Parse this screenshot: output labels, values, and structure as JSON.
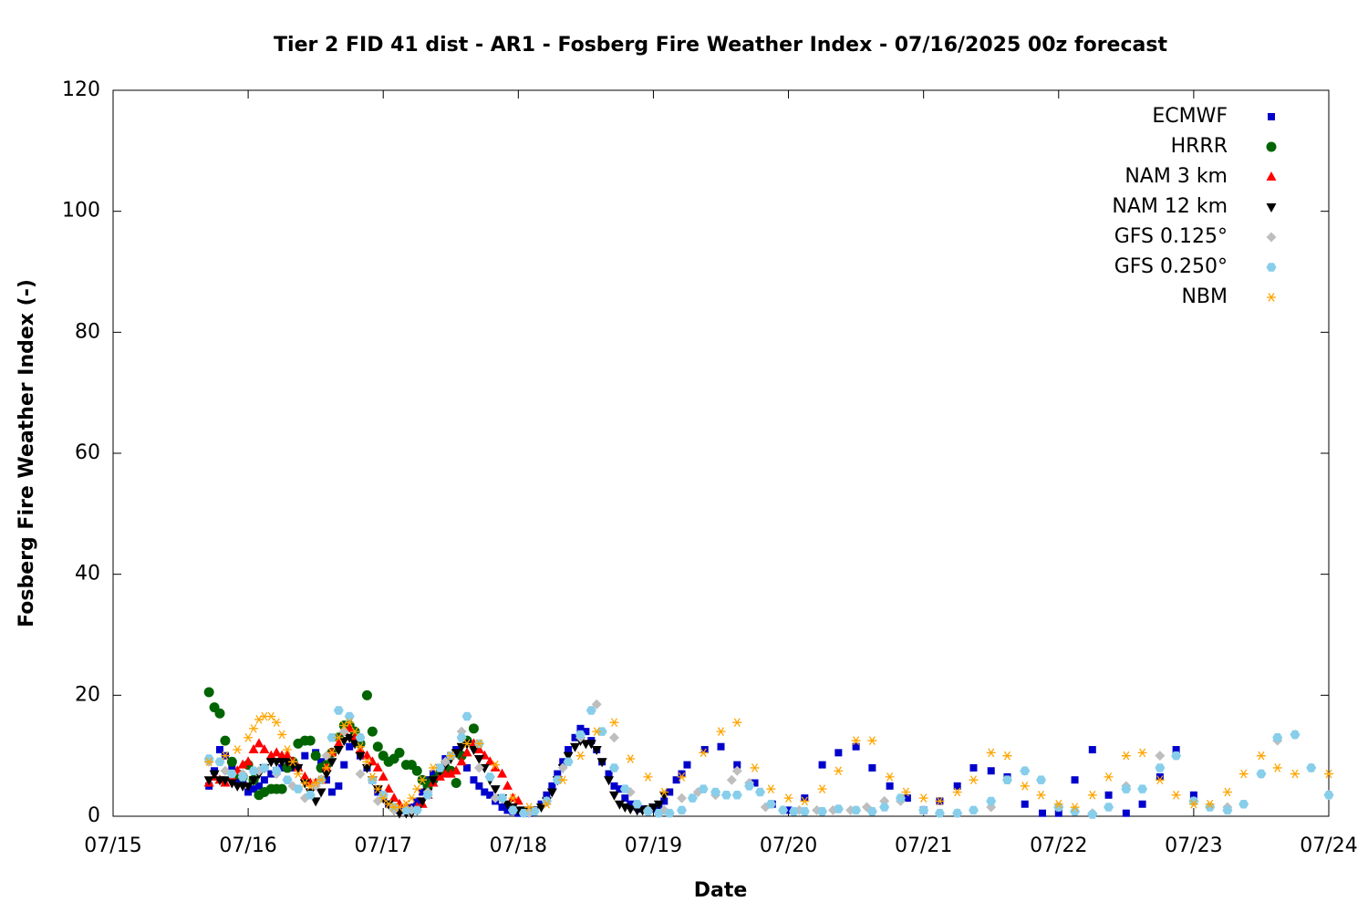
{
  "chart_data": {
    "type": "scatter",
    "title": "Tier 2 FID 41 dist - AR1 - Fosberg Fire Weather Index - 07/16/2025 00z forecast",
    "x_label": "Date",
    "y_label": "Fosberg Fire Weather Index (-)",
    "xlim": [
      0,
      9
    ],
    "ylim": [
      0,
      120
    ],
    "xticks": [
      {
        "value": 0,
        "label": "07/15"
      },
      {
        "value": 1,
        "label": "07/16"
      },
      {
        "value": 2,
        "label": "07/17"
      },
      {
        "value": 3,
        "label": "07/18"
      },
      {
        "value": 4,
        "label": "07/19"
      },
      {
        "value": 5,
        "label": "07/20"
      },
      {
        "value": 6,
        "label": "07/21"
      },
      {
        "value": 7,
        "label": "07/22"
      },
      {
        "value": 8,
        "label": "07/23"
      },
      {
        "value": 9,
        "label": "07/24"
      }
    ],
    "yticks": [
      0,
      20,
      40,
      60,
      80,
      100,
      120
    ],
    "legend": "top-right",
    "series": [
      {
        "name": "ECMWF",
        "color": "#0000cc",
        "marker": "square",
        "x": [
          0.71,
          0.75,
          0.79,
          0.83,
          0.88,
          0.92,
          0.96,
          1.0,
          1.04,
          1.08,
          1.12,
          1.17,
          1.21,
          1.25,
          1.29,
          1.33,
          1.37,
          1.42,
          1.46,
          1.5,
          1.54,
          1.58,
          1.62,
          1.67,
          1.71,
          1.75,
          1.79,
          1.83,
          1.88,
          1.92,
          1.96,
          2.0,
          2.04,
          2.08,
          2.12,
          2.17,
          2.21,
          2.25,
          2.29,
          2.33,
          2.37,
          2.42,
          2.46,
          2.5,
          2.54,
          2.58,
          2.62,
          2.67,
          2.71,
          2.75,
          2.79,
          2.83,
          2.88,
          2.92,
          2.96,
          3.0,
          3.04,
          3.08,
          3.12,
          3.17,
          3.21,
          3.25,
          3.29,
          3.33,
          3.37,
          3.42,
          3.46,
          3.5,
          3.54,
          3.58,
          3.62,
          3.67,
          3.71,
          3.75,
          3.79,
          3.83,
          3.88,
          3.92,
          3.96,
          4.0,
          4.04,
          4.08,
          4.12,
          4.17,
          4.21,
          4.25,
          4.38,
          4.5,
          4.62,
          4.75,
          4.88,
          5.0,
          5.12,
          5.25,
          5.37,
          5.5,
          5.62,
          5.75,
          5.88,
          6.0,
          6.12,
          6.25,
          6.37,
          6.5,
          6.62,
          6.75,
          6.88,
          7.0,
          7.12,
          7.25,
          7.37,
          7.5,
          7.62,
          7.75,
          7.87,
          8.0
        ],
        "values": [
          5,
          7.5,
          11,
          10,
          8,
          6,
          6,
          4,
          4.5,
          5,
          6,
          7,
          7.5,
          8,
          8,
          8,
          8,
          10,
          12.5,
          10.5,
          9,
          6,
          4,
          5,
          8.5,
          11.5,
          12,
          10,
          8,
          6,
          4,
          3,
          2,
          1.5,
          1,
          1,
          1.5,
          2.5,
          4,
          6,
          7,
          8,
          9.5,
          10,
          11,
          10,
          8,
          6,
          5,
          4,
          3.5,
          2.5,
          1.5,
          1,
          0.8,
          0.5,
          0.5,
          0.5,
          1,
          2,
          3.5,
          5,
          7,
          9,
          11,
          13,
          14.5,
          14,
          12.5,
          11,
          9,
          7,
          5,
          4.5,
          3,
          2,
          1.5,
          1.2,
          1,
          1.2,
          1.5,
          2.5,
          4,
          6,
          7,
          8.5,
          11,
          11.5,
          8.5,
          5.5,
          2,
          1,
          3,
          8.5,
          10.5,
          11.5,
          8,
          5,
          3,
          1,
          2.5,
          5,
          8,
          7.5,
          6.5,
          2,
          0.5,
          0.5,
          6,
          11,
          3.5,
          0.5,
          2,
          6.5,
          11,
          3.5
        ]
      },
      {
        "name": "HRRR",
        "color": "#006400",
        "marker": "circle",
        "x": [
          0.71,
          0.75,
          0.79,
          0.83,
          0.88,
          0.92,
          0.96,
          1.0,
          1.04,
          1.08,
          1.12,
          1.17,
          1.21,
          1.25,
          1.29,
          1.33,
          1.37,
          1.42,
          1.46,
          1.5,
          1.54,
          1.58,
          1.62,
          1.67,
          1.71,
          1.75,
          1.79,
          1.83,
          1.88,
          1.92,
          1.96,
          2.0,
          2.04,
          2.08,
          2.12,
          2.17,
          2.21,
          2.25,
          2.29,
          2.33,
          2.37,
          2.42,
          2.46,
          2.5,
          2.54,
          2.58,
          2.62,
          2.67
        ],
        "values": [
          20.5,
          18,
          17,
          12.5,
          9,
          7,
          6.5,
          8.5,
          6,
          3.5,
          4,
          4.5,
          4.5,
          4.5,
          8,
          9,
          12,
          12.5,
          12.5,
          10,
          8,
          8.5,
          10.5,
          13,
          15,
          15,
          14,
          12,
          20,
          14,
          11.5,
          10,
          9,
          9.5,
          10.5,
          8.5,
          8.5,
          7.5,
          6,
          5,
          6,
          7,
          8,
          7.5,
          5.5,
          10,
          12.5,
          14.5
        ]
      },
      {
        "name": "NAM 3 km",
        "color": "#ff0000",
        "marker": "triangle-up",
        "x": [
          0.71,
          0.75,
          0.79,
          0.83,
          0.88,
          0.92,
          0.96,
          1.0,
          1.04,
          1.08,
          1.12,
          1.17,
          1.21,
          1.25,
          1.29,
          1.33,
          1.37,
          1.42,
          1.46,
          1.5,
          1.54,
          1.58,
          1.62,
          1.67,
          1.71,
          1.75,
          1.79,
          1.83,
          1.88,
          1.92,
          1.96,
          2.0,
          2.04,
          2.08,
          2.12,
          2.17,
          2.21,
          2.25,
          2.29,
          2.33,
          2.37,
          2.42,
          2.46,
          2.5,
          2.54,
          2.58,
          2.62,
          2.67,
          2.71,
          2.75,
          2.79,
          2.83,
          2.88,
          2.92,
          2.96,
          3.0
        ],
        "values": [
          5.5,
          6.5,
          6,
          5.5,
          6.5,
          7.5,
          8.5,
          9,
          11,
          12,
          11,
          10,
          10.5,
          10,
          10,
          9,
          8,
          6.5,
          5.5,
          5.5,
          6,
          8,
          10.5,
          12,
          14,
          14.5,
          13,
          11,
          10,
          9,
          8,
          6.5,
          4.5,
          3,
          2,
          1.5,
          1,
          1.5,
          2,
          3.5,
          5.5,
          6.5,
          7,
          7,
          7.5,
          9,
          10.5,
          12,
          11,
          10,
          9,
          8,
          7,
          5,
          3,
          2.5
        ]
      },
      {
        "name": "NAM 12 km",
        "color": "#000000",
        "marker": "triangle-down",
        "x": [
          0.71,
          0.75,
          0.79,
          0.83,
          0.88,
          0.92,
          0.96,
          1.0,
          1.04,
          1.08,
          1.12,
          1.17,
          1.21,
          1.25,
          1.29,
          1.33,
          1.37,
          1.42,
          1.46,
          1.5,
          1.54,
          1.58,
          1.62,
          1.67,
          1.71,
          1.75,
          1.79,
          1.83,
          1.88,
          1.92,
          1.96,
          2.0,
          2.04,
          2.08,
          2.12,
          2.17,
          2.21,
          2.25,
          2.29,
          2.33,
          2.37,
          2.42,
          2.46,
          2.5,
          2.54,
          2.58,
          2.62,
          2.67,
          2.71,
          2.75,
          2.79,
          2.83,
          2.88,
          2.92,
          2.96,
          3.0,
          3.04,
          3.08,
          3.12,
          3.17,
          3.21,
          3.25,
          3.29,
          3.33,
          3.37,
          3.42,
          3.46,
          3.5,
          3.54,
          3.58,
          3.62,
          3.67,
          3.71,
          3.75,
          3.79,
          3.83,
          3.88,
          3.92,
          3.96,
          4.0,
          4.04,
          4.08
        ],
        "values": [
          6,
          7,
          6,
          6,
          5.5,
          5,
          5,
          5,
          6,
          7,
          8,
          9,
          9,
          9,
          9,
          8.5,
          8,
          5.5,
          4,
          2.5,
          4,
          7,
          9,
          11,
          12.5,
          13,
          12,
          10,
          8,
          6,
          4.5,
          3,
          2,
          1,
          0.5,
          0.5,
          0.5,
          1,
          2.5,
          4,
          6,
          7.5,
          8.5,
          9.5,
          10.5,
          11.5,
          12,
          11,
          9.5,
          8,
          6,
          4.5,
          3,
          2,
          1.5,
          1,
          1,
          1,
          1,
          1.5,
          2.5,
          4,
          6,
          8,
          10,
          11.5,
          12.5,
          12,
          12,
          11,
          9,
          6,
          3.5,
          2,
          1.5,
          1.2,
          1,
          1,
          1.2,
          1.5,
          2,
          3.5
        ]
      },
      {
        "name": "GFS 0.125°",
        "color": "#bebebe",
        "marker": "diamond",
        "x": [
          0.71,
          0.83,
          0.96,
          1.08,
          1.21,
          1.33,
          1.42,
          1.5,
          1.58,
          1.71,
          1.83,
          1.96,
          2.08,
          2.21,
          2.33,
          2.46,
          2.58,
          2.71,
          2.83,
          2.96,
          3.08,
          3.21,
          3.33,
          3.46,
          3.58,
          3.71,
          3.83,
          3.96,
          4.08,
          4.21,
          4.33,
          4.46,
          4.58,
          4.62,
          4.71,
          4.83,
          4.96,
          5.08,
          5.21,
          5.33,
          5.46,
          5.58,
          5.71,
          5.83,
          6.0,
          6.25,
          6.5,
          6.75,
          7.0,
          7.25,
          7.5,
          7.75,
          8.0,
          8.25,
          8.5,
          8.62,
          8.75,
          8.87,
          9.0
        ],
        "values": [
          9,
          7.5,
          7,
          7.5,
          7,
          5,
          3,
          5,
          10,
          14,
          7,
          2.5,
          1,
          1,
          4,
          9,
          14,
          8,
          3,
          1,
          0.5,
          2.5,
          8,
          13,
          18.5,
          13,
          4,
          1,
          1,
          3,
          4,
          3.5,
          6,
          7.5,
          5.5,
          1.5,
          1,
          1,
          1,
          1,
          1,
          1.5,
          2.5,
          2.5,
          1,
          0.5,
          1.5,
          7.5,
          1.5,
          0.5,
          5,
          10,
          2.5,
          1.5,
          7,
          12.5,
          13.5,
          8,
          3.5
        ]
      },
      {
        "name": "GFS 0.250°",
        "color": "#87ceeb",
        "marker": "hexagon",
        "x": [
          0.71,
          0.79,
          0.88,
          0.96,
          1.04,
          1.12,
          1.21,
          1.29,
          1.37,
          1.46,
          1.54,
          1.62,
          1.67,
          1.75,
          1.83,
          1.92,
          2.0,
          2.08,
          2.17,
          2.25,
          2.33,
          2.42,
          2.5,
          2.58,
          2.62,
          2.71,
          2.79,
          2.88,
          2.96,
          3.04,
          3.12,
          3.21,
          3.29,
          3.37,
          3.46,
          3.54,
          3.62,
          3.71,
          3.79,
          3.88,
          3.96,
          4.04,
          4.12,
          4.21,
          4.29,
          4.37,
          4.46,
          4.54,
          4.62,
          4.71,
          4.79,
          4.87,
          4.96,
          5.04,
          5.12,
          5.25,
          5.37,
          5.5,
          5.62,
          5.71,
          5.83,
          6.0,
          6.12,
          6.25,
          6.37,
          6.5,
          6.62,
          6.75,
          6.87,
          7.0,
          7.12,
          7.25,
          7.37,
          7.5,
          7.62,
          7.75,
          7.87,
          8.0,
          8.12,
          8.25,
          8.37,
          8.5,
          8.62,
          8.75,
          8.87,
          9.0
        ],
        "values": [
          9.5,
          9,
          7,
          6.5,
          7.5,
          8,
          7.5,
          6,
          4.5,
          3.5,
          6,
          13,
          17.5,
          16.5,
          13,
          6,
          3.5,
          1.5,
          1,
          1,
          3.5,
          8,
          10,
          13,
          16.5,
          12,
          6.5,
          3,
          1,
          0.5,
          0.8,
          2.5,
          6,
          9,
          13.5,
          17.5,
          14,
          8,
          4.5,
          2,
          0.8,
          0.5,
          0.5,
          1,
          3,
          4.5,
          4,
          3.5,
          3.5,
          5,
          4,
          2,
          1,
          0.8,
          0.8,
          0.8,
          1.2,
          1,
          0.8,
          1.5,
          3,
          1,
          0.5,
          0.5,
          1,
          2.5,
          6,
          7.5,
          6,
          1.5,
          0.8,
          0.3,
          1.5,
          4.5,
          4.5,
          8,
          10,
          2.5,
          1.5,
          1,
          2,
          7,
          13,
          13.5,
          8,
          3.5
        ]
      },
      {
        "name": "NBM",
        "color": "#ffa500",
        "marker": "asterisk",
        "x": [
          0.71,
          0.83,
          0.92,
          1.0,
          1.04,
          1.08,
          1.12,
          1.17,
          1.21,
          1.25,
          1.29,
          1.33,
          1.37,
          1.42,
          1.46,
          1.5,
          1.54,
          1.58,
          1.62,
          1.67,
          1.71,
          1.75,
          1.79,
          1.83,
          1.88,
          1.92,
          1.96,
          2.0,
          2.04,
          2.08,
          2.12,
          2.17,
          2.21,
          2.25,
          2.29,
          2.37,
          2.5,
          2.62,
          2.71,
          2.83,
          2.96,
          3.08,
          3.21,
          3.33,
          3.46,
          3.58,
          3.71,
          3.83,
          3.96,
          4.08,
          4.21,
          4.37,
          4.5,
          4.62,
          4.75,
          4.87,
          5.0,
          5.12,
          5.25,
          5.37,
          5.5,
          5.62,
          5.75,
          5.87,
          6.0,
          6.12,
          6.25,
          6.37,
          6.5,
          6.62,
          6.75,
          6.87,
          7.0,
          7.12,
          7.25,
          7.37,
          7.5,
          7.62,
          7.75,
          7.87,
          8.0,
          8.12,
          8.25,
          8.37,
          8.5,
          8.62,
          8.75,
          9.0
        ],
        "values": [
          9,
          10,
          11,
          13,
          14.5,
          16,
          16.5,
          16.5,
          15.5,
          13.5,
          11,
          9,
          7,
          5.5,
          5,
          5.5,
          6,
          8,
          10.5,
          13,
          15,
          15.5,
          14,
          11.5,
          9,
          6.5,
          4.5,
          3,
          2,
          1.5,
          1.5,
          2,
          3,
          4.5,
          6,
          8,
          10,
          12,
          12,
          8.5,
          3,
          1.5,
          2,
          6,
          10,
          14,
          15.5,
          9.5,
          6.5,
          4,
          6.5,
          10.5,
          14,
          15.5,
          8,
          4.5,
          3,
          2.5,
          4.5,
          7.5,
          12.5,
          12.5,
          6.5,
          4,
          3,
          2.5,
          4,
          6,
          10.5,
          10,
          5,
          3.5,
          2,
          1.5,
          3.5,
          6.5,
          10,
          10.5,
          6,
          3.5,
          2,
          2,
          4,
          7,
          10,
          8,
          7,
          7
        ]
      }
    ]
  }
}
